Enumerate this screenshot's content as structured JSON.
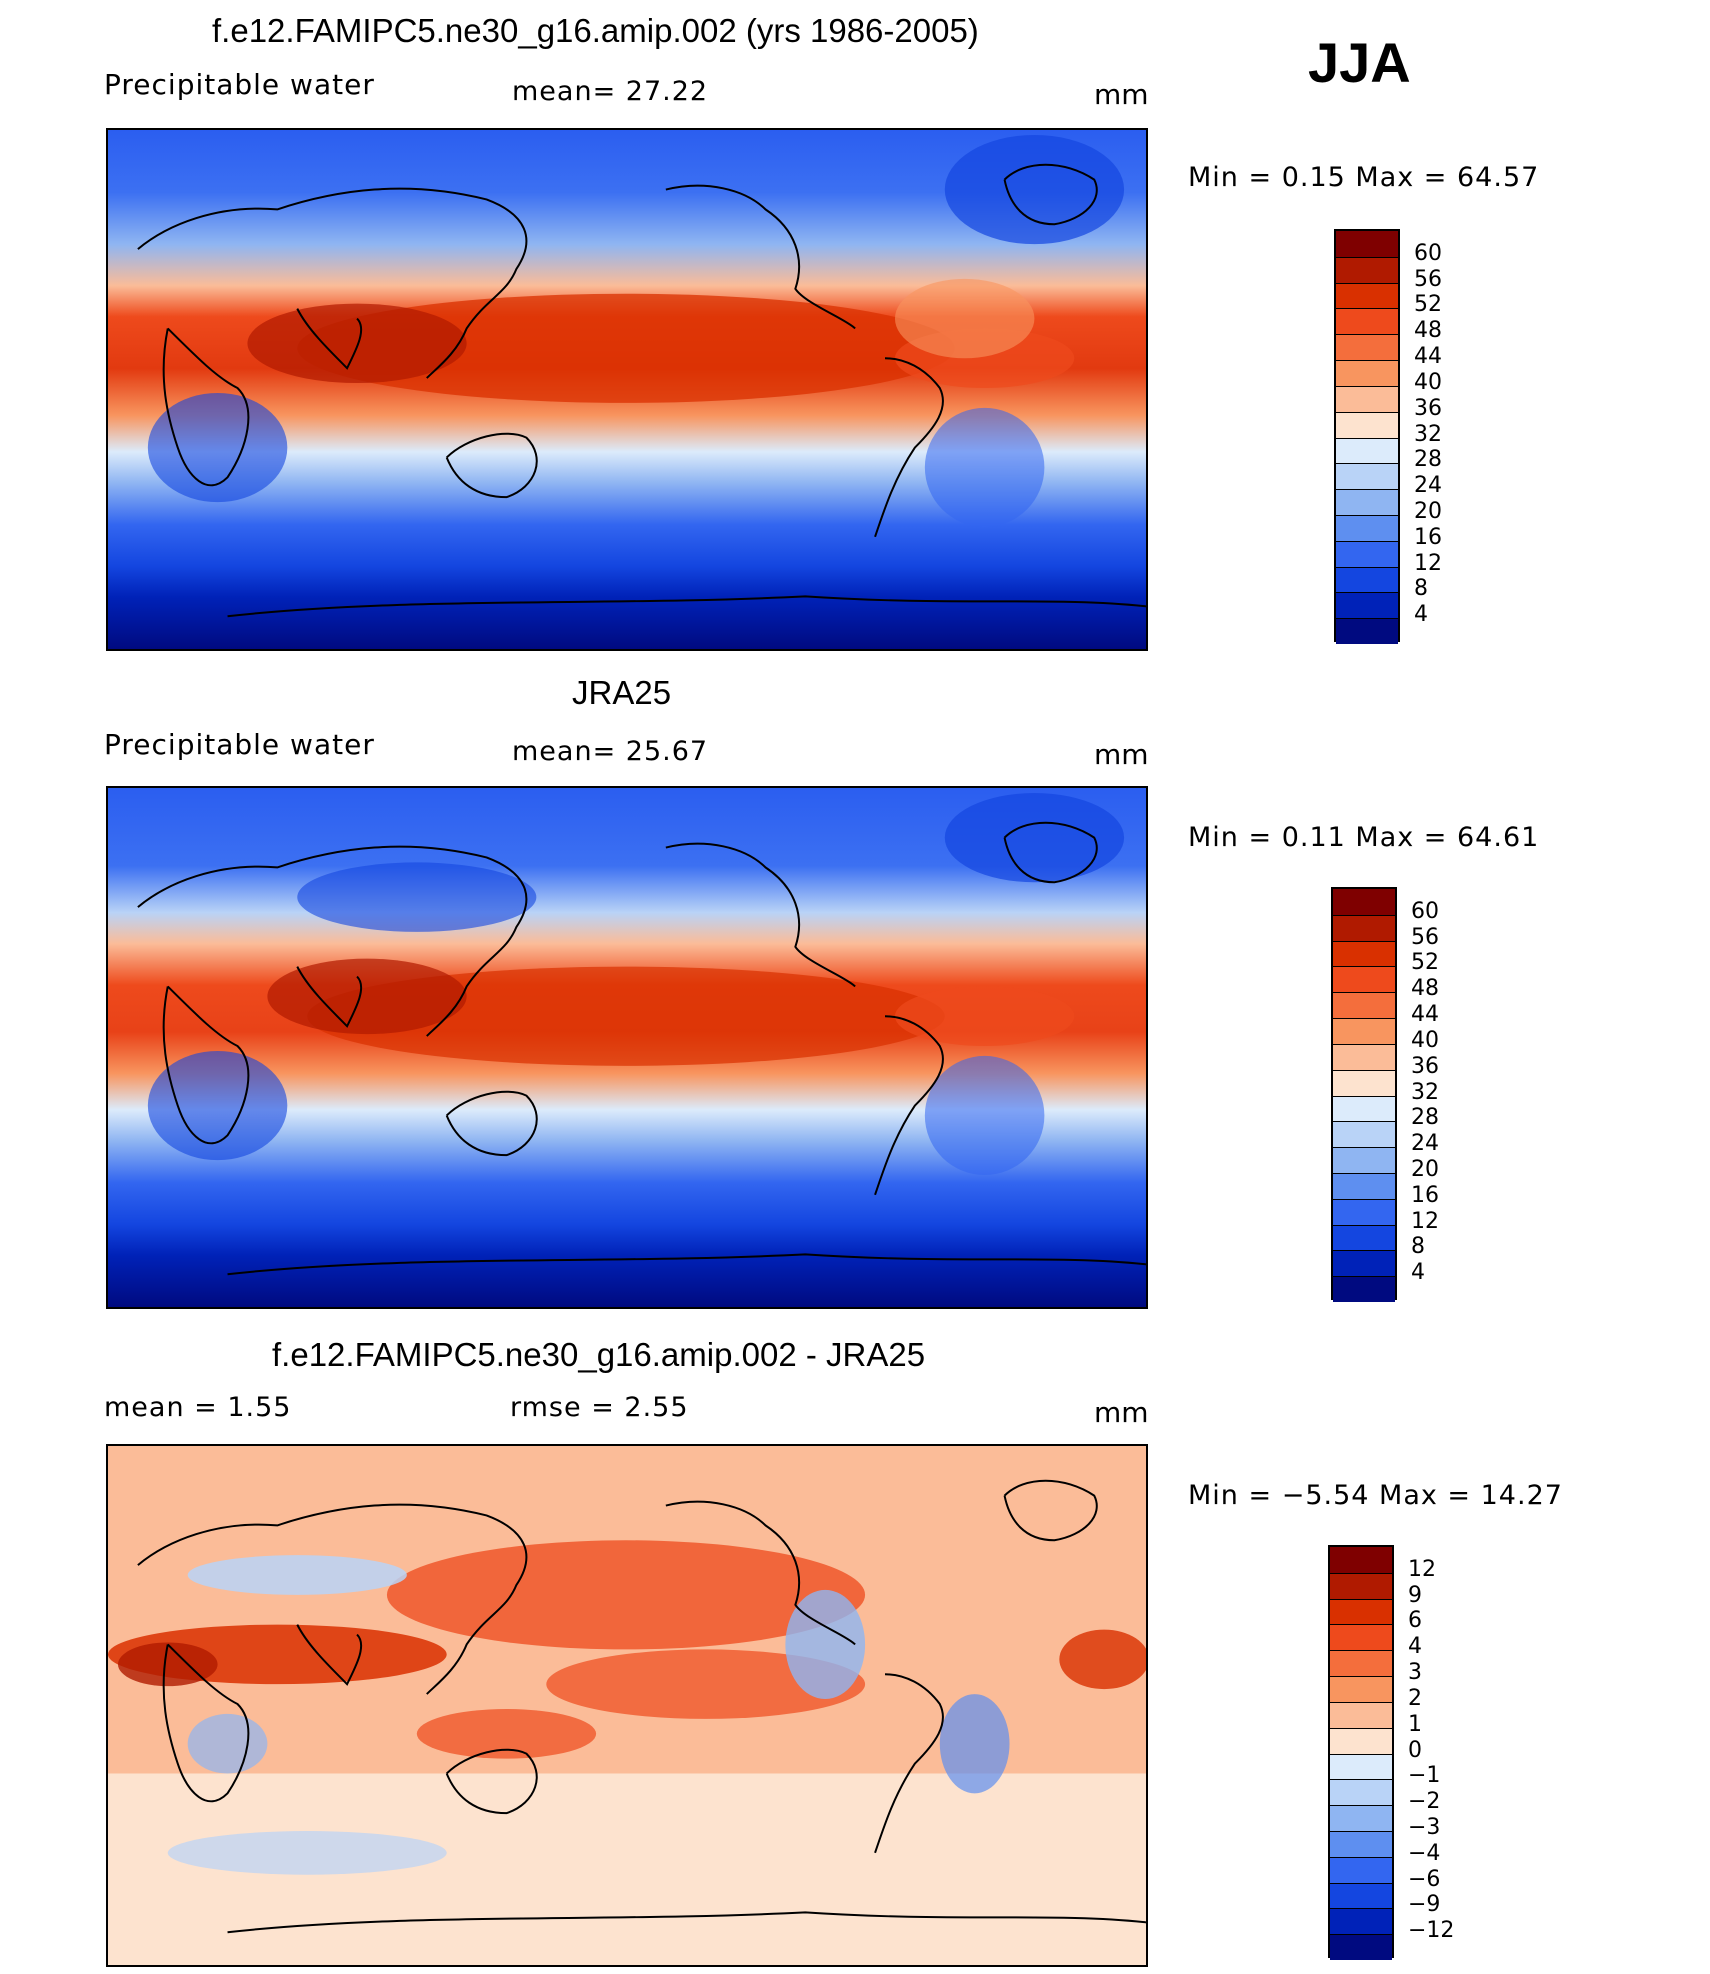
{
  "season": "JJA",
  "panels": [
    {
      "title": "f.e12.FAMIPC5.ne30_g16.amip.002 (yrs 1986-2005)",
      "variable": "Precipitable water",
      "stat1": "mean=   27.22",
      "stat2": "",
      "units": "mm",
      "minmax": "Min  =     0.15  Max  =     64.57",
      "colorbar": {
        "labels": [
          "60",
          "56",
          "52",
          "48",
          "44",
          "40",
          "36",
          "32",
          "28",
          "24",
          "20",
          "16",
          "12",
          "8",
          "4"
        ],
        "colors": [
          "#7f0000",
          "#b01a00",
          "#d93000",
          "#ee4a1c",
          "#f46e3c",
          "#f8955f",
          "#fbbc98",
          "#fde3cf",
          "#dcebfb",
          "#b9d3f7",
          "#8fb5f2",
          "#5e8ff0",
          "#3366f0",
          "#1446e0",
          "#0022b8",
          "#000a80"
        ]
      }
    },
    {
      "title": "JRA25",
      "variable": "Precipitable water",
      "stat1": "mean=   25.67",
      "stat2": "",
      "units": "mm",
      "minmax": "Min  =     0.11  Max  =     64.61",
      "colorbar": {
        "labels": [
          "60",
          "56",
          "52",
          "48",
          "44",
          "40",
          "36",
          "32",
          "28",
          "24",
          "20",
          "16",
          "12",
          "8",
          "4"
        ],
        "colors": [
          "#7f0000",
          "#b01a00",
          "#d93000",
          "#ee4a1c",
          "#f46e3c",
          "#f8955f",
          "#fbbc98",
          "#fde3cf",
          "#dcebfb",
          "#b9d3f7",
          "#8fb5f2",
          "#5e8ff0",
          "#3366f0",
          "#1446e0",
          "#0022b8",
          "#000a80"
        ]
      }
    },
    {
      "title": "f.e12.FAMIPC5.ne30_g16.amip.002 - JRA25",
      "variable": "",
      "stat1": "mean  =     1.55",
      "stat2": "rmse  =     2.55",
      "units": "mm",
      "minmax": "Min  =    −5.54  Max  =     14.27",
      "colorbar": {
        "labels": [
          "12",
          "9",
          "6",
          "4",
          "3",
          "2",
          "1",
          "0",
          "−1",
          "−2",
          "−3",
          "−4",
          "−6",
          "−9",
          "−12"
        ],
        "colors": [
          "#7f0000",
          "#b01a00",
          "#d93000",
          "#ee4a1c",
          "#f46e3c",
          "#f8955f",
          "#fbbc98",
          "#fde3cf",
          "#dcebfb",
          "#b9d3f7",
          "#8fb5f2",
          "#5e8ff0",
          "#3366f0",
          "#1446e0",
          "#0022b8",
          "#000a80"
        ]
      }
    }
  ]
}
